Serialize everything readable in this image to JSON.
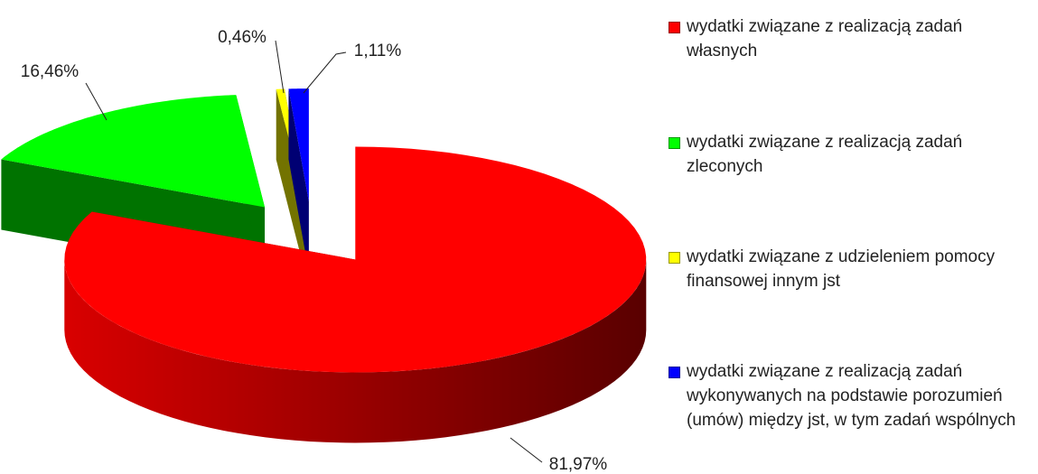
{
  "chart_data": {
    "type": "pie3d",
    "series": [
      {
        "name": "wydatki związane z realizacją zadań własnych",
        "color": "#ff0000",
        "values": [
          81.97
        ],
        "value_labels": [
          "81,97%"
        ]
      },
      {
        "name": "wydatki związane z realizacją zadań zleconych",
        "color": "#00ff00",
        "values": [
          16.46
        ],
        "value_labels": [
          "16,46%"
        ]
      },
      {
        "name": "wydatki związane z udzieleniem pomocy finansowej innym jst",
        "color": "#ffff00",
        "values": [
          0.46
        ],
        "value_labels": [
          "0,46%"
        ]
      },
      {
        "name": "wydatki związane z realizacją zadań wykonywanych na podstawie porozumień (umów) między jst, w tym zadań wspólnych",
        "color": "#0000ff",
        "values": [
          1.11
        ],
        "value_labels": [
          "1,11%"
        ]
      }
    ],
    "legend": "right"
  }
}
